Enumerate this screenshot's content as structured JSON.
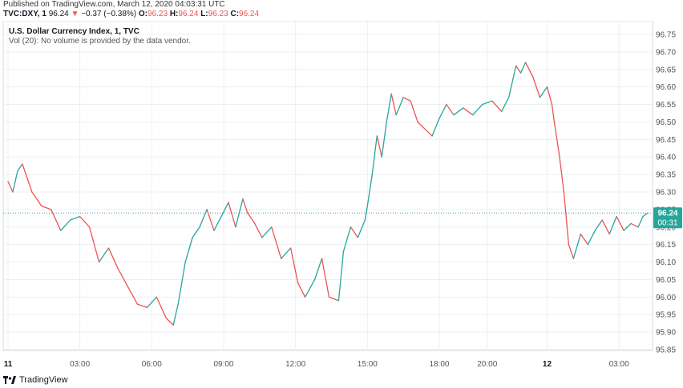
{
  "header": {
    "published": "Published on TradingView.com, March 12, 2020 04:03:31 UTC",
    "symbol": "TVC:DXY, 1",
    "last": "96.24",
    "down_arrow": "▼",
    "change": "−0.37 (−0.38%)",
    "o_label": "O:",
    "o_val": "96.23",
    "h_label": "H:",
    "h_val": "96.24",
    "l_label": "L:",
    "l_val": "96.23",
    "c_label": "C:",
    "c_val": "96.24"
  },
  "legend": {
    "title": "U.S. Dollar Currency Index, 1, TVC",
    "vol": "Vol (20): No volume is provided by the data vendor."
  },
  "price_tag": {
    "value": "96.24",
    "countdown": "00:31"
  },
  "footer": {
    "brand": "TradingView"
  },
  "colors": {
    "up": "#26a69a",
    "down": "#ef5350",
    "grid": "#eceff3",
    "axis_text": "#555555",
    "price_tag": "#26a69a",
    "last_line": "#26a69a"
  },
  "chart_data": {
    "type": "line",
    "ylim": [
      95.85,
      96.75
    ],
    "y_ticks": [
      "96.75",
      "96.70",
      "96.65",
      "96.60",
      "96.55",
      "96.50",
      "96.45",
      "96.40",
      "96.35",
      "96.30",
      "96.25",
      "96.20",
      "96.15",
      "96.10",
      "96.05",
      "96.00",
      "95.95",
      "95.90",
      "95.85"
    ],
    "x_tick_labels": [
      "11",
      "03:00",
      "06:00",
      "09:00",
      "12:00",
      "15:00",
      "18:00",
      "20:00",
      "12",
      "03:00"
    ],
    "x_tick_pos": [
      0,
      3,
      6,
      9,
      12,
      15,
      18,
      20,
      22.5,
      25.5
    ],
    "x_range": [
      -0.2,
      26.9
    ],
    "series": [
      {
        "x": [
          0,
          0.2,
          0.4,
          0.6,
          1.0,
          1.4,
          1.8,
          2.2,
          2.6,
          3.0,
          3.4,
          3.8,
          4.2,
          4.6,
          5.0,
          5.4,
          5.8,
          6.2,
          6.6,
          6.9,
          7.1,
          7.4,
          7.7,
          8.0,
          8.3,
          8.6,
          8.9,
          9.2,
          9.5,
          9.8,
          10.0,
          10.3,
          10.6,
          11.0,
          11.4,
          11.8,
          12.1,
          12.4,
          12.8,
          13.1,
          13.4,
          13.8,
          14.0,
          14.3,
          14.6,
          14.9,
          15.0,
          15.2,
          15.4,
          15.6,
          15.8,
          16.0,
          16.2,
          16.5,
          16.8,
          17.1,
          17.4,
          17.7,
          18.0,
          18.3,
          18.6,
          19.0,
          19.4,
          19.8,
          20.2,
          20.6,
          20.9,
          21.2,
          21.4,
          21.6,
          21.9,
          22.2,
          22.5,
          22.7,
          22.8,
          23.0,
          23.2,
          23.4,
          23.6,
          23.9,
          24.2,
          24.5,
          24.8,
          25.1,
          25.4,
          25.7,
          26.0,
          26.3,
          26.5,
          26.7
        ],
        "y": [
          96.33,
          96.3,
          96.36,
          96.38,
          96.3,
          96.26,
          96.25,
          96.19,
          96.22,
          96.23,
          96.2,
          96.1,
          96.14,
          96.08,
          96.03,
          95.98,
          95.97,
          96.0,
          95.94,
          95.92,
          95.98,
          96.1,
          96.17,
          96.2,
          96.25,
          96.19,
          96.23,
          96.27,
          96.2,
          96.28,
          96.24,
          96.21,
          96.17,
          96.2,
          96.11,
          96.14,
          96.04,
          96.0,
          96.05,
          96.11,
          96.0,
          95.99,
          96.13,
          96.2,
          96.17,
          96.22,
          96.26,
          96.35,
          96.46,
          96.4,
          96.5,
          96.58,
          96.52,
          96.57,
          96.56,
          96.5,
          96.48,
          96.46,
          96.51,
          96.55,
          96.52,
          96.54,
          96.52,
          96.55,
          96.56,
          96.53,
          96.57,
          96.66,
          96.64,
          96.67,
          96.63,
          96.57,
          96.6,
          96.55,
          96.5,
          96.41,
          96.3,
          96.15,
          96.11,
          96.18,
          96.15,
          96.19,
          96.22,
          96.18,
          96.23,
          96.19,
          96.21,
          96.2,
          96.23,
          96.24
        ]
      }
    ]
  }
}
